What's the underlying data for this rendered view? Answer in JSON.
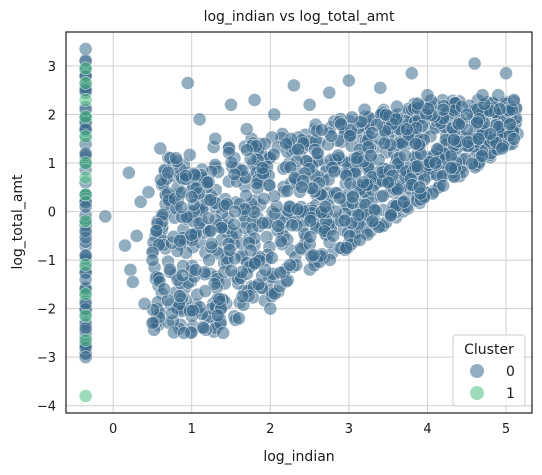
{
  "chart_data": {
    "type": "scatter",
    "title": "log_indian vs log_total_amt",
    "xlabel": "log_indian",
    "ylabel": "log_total_amt",
    "xlim": [
      -0.6,
      5.33
    ],
    "ylim": [
      -4.15,
      3.7
    ],
    "xticks": [
      0,
      1,
      2,
      3,
      4,
      5
    ],
    "yticks": [
      -4,
      -3,
      -2,
      -1,
      0,
      1,
      2,
      3
    ],
    "grid": true,
    "legend": {
      "title": "Cluster",
      "placement": "lower-right",
      "entries": [
        {
          "label": "0",
          "color": "#3a6a8c"
        },
        {
          "label": "1",
          "color": "#4fbf7f"
        }
      ]
    },
    "series": [
      {
        "name": "0",
        "color": "#3a6a8c",
        "points": [
          [
            -0.35,
            3.35
          ],
          [
            -0.35,
            3.1
          ],
          [
            -0.35,
            2.8
          ],
          [
            -0.35,
            2.5
          ],
          [
            -0.35,
            2.1
          ],
          [
            -0.35,
            1.7
          ],
          [
            -0.35,
            1.2
          ],
          [
            -0.35,
            0.6
          ],
          [
            -0.35,
            0.1
          ],
          [
            -0.35,
            -0.4
          ],
          [
            -0.35,
            -0.9
          ],
          [
            -0.35,
            -1.4
          ],
          [
            -0.35,
            -1.9
          ],
          [
            -0.35,
            -2.4
          ],
          [
            -0.35,
            -2.8
          ],
          [
            -0.35,
            -3.0
          ],
          [
            -0.1,
            -0.1
          ],
          [
            0.15,
            -0.7
          ],
          [
            0.2,
            0.8
          ],
          [
            0.22,
            -1.2
          ],
          [
            0.25,
            -1.45
          ],
          [
            0.3,
            -0.5
          ],
          [
            0.35,
            0.2
          ],
          [
            0.4,
            -1.9
          ],
          [
            0.45,
            0.4
          ],
          [
            0.5,
            -1.0
          ],
          [
            0.55,
            -0.4
          ],
          [
            0.5,
            -2.3
          ],
          [
            0.6,
            1.3
          ],
          [
            0.65,
            -1.6
          ],
          [
            0.7,
            0.8
          ],
          [
            0.75,
            -2.1
          ],
          [
            0.8,
            1.1
          ],
          [
            0.85,
            -0.6
          ],
          [
            0.9,
            -2.5
          ],
          [
            0.95,
            2.65
          ],
          [
            1.0,
            0.3
          ],
          [
            1.05,
            -1.2
          ],
          [
            1.1,
            1.9
          ],
          [
            1.15,
            -2.4
          ],
          [
            1.2,
            0.6
          ],
          [
            1.3,
            1.5
          ],
          [
            1.35,
            -1.8
          ],
          [
            1.4,
            -2.5
          ],
          [
            1.5,
            2.2
          ],
          [
            1.55,
            0.0
          ],
          [
            1.6,
            -2.2
          ],
          [
            1.7,
            1.7
          ],
          [
            1.75,
            -0.8
          ],
          [
            1.8,
            2.3
          ],
          [
            1.85,
            -1.5
          ],
          [
            1.9,
            0.9
          ],
          [
            2.0,
            -2.0
          ],
          [
            2.05,
            2.0
          ],
          [
            2.1,
            -0.3
          ],
          [
            2.2,
            1.4
          ],
          [
            2.25,
            -1.1
          ],
          [
            2.3,
            2.6
          ],
          [
            2.4,
            0.5
          ],
          [
            2.5,
            2.2
          ],
          [
            2.55,
            -0.9
          ],
          [
            2.6,
            1.2
          ],
          [
            2.7,
            0.1
          ],
          [
            2.75,
            2.45
          ],
          [
            2.8,
            -0.5
          ],
          [
            2.9,
            1.8
          ],
          [
            3.0,
            2.7
          ],
          [
            3.05,
            0.3
          ],
          [
            3.1,
            1.1
          ],
          [
            3.2,
            2.1
          ],
          [
            3.3,
            -0.2
          ],
          [
            3.4,
            2.55
          ],
          [
            3.5,
            0.6
          ],
          [
            3.6,
            1.9
          ],
          [
            3.7,
            0.2
          ],
          [
            3.8,
            2.85
          ],
          [
            3.85,
            1.4
          ],
          [
            3.9,
            0.5
          ],
          [
            4.0,
            2.4
          ],
          [
            4.1,
            1.0
          ],
          [
            4.2,
            2.1
          ],
          [
            4.3,
            0.9
          ],
          [
            4.4,
            1.8
          ],
          [
            4.5,
            2.0
          ],
          [
            4.6,
            3.05
          ],
          [
            4.65,
            1.5
          ],
          [
            4.7,
            2.4
          ],
          [
            4.8,
            1.6
          ],
          [
            4.9,
            2.4
          ],
          [
            5.0,
            2.85
          ],
          [
            5.05,
            1.8
          ],
          [
            5.1,
            2.3
          ],
          [
            4.95,
            1.3
          ]
        ]
      },
      {
        "name": "1",
        "color": "#4fbf7f",
        "points": [
          [
            -0.35,
            2.95
          ],
          [
            -0.35,
            2.65
          ],
          [
            -0.35,
            2.3
          ],
          [
            -0.35,
            1.95
          ],
          [
            -0.35,
            1.55
          ],
          [
            -0.35,
            1.0
          ],
          [
            -0.35,
            0.7
          ],
          [
            -0.35,
            0.35
          ],
          [
            -0.35,
            -0.2
          ],
          [
            -0.35,
            -1.1
          ],
          [
            -0.35,
            -1.7
          ],
          [
            -0.35,
            -2.15
          ],
          [
            -0.35,
            -2.65
          ],
          [
            -0.35,
            -3.8
          ]
        ]
      }
    ]
  }
}
